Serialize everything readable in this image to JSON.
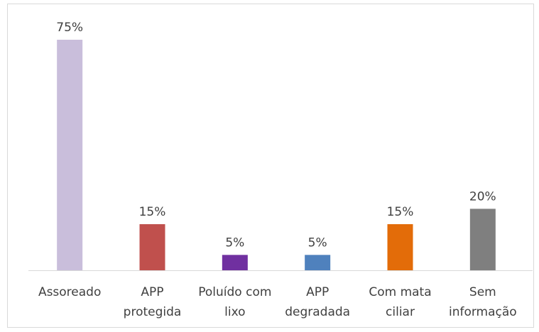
{
  "chart_data": {
    "type": "bar",
    "categories": [
      "Assoreado",
      "APP protegida",
      "Poluído com lixo",
      "APP degradada",
      "Com mata ciliar",
      "Sem informação"
    ],
    "values": [
      75,
      15,
      5,
      5,
      15,
      20
    ],
    "value_labels": [
      "75%",
      "15%",
      "5%",
      "5%",
      "15%",
      "20%"
    ],
    "colors": [
      "#c9bedb",
      "#c0504d",
      "#7030a0",
      "#4f81bd",
      "#e36c09",
      "#7f7f7f"
    ],
    "ylim": [
      0,
      75
    ]
  }
}
